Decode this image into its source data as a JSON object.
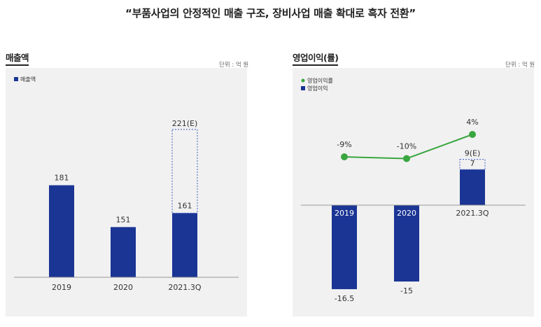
{
  "headline": "“부품사업의 안정적인 매출 구조, 장비사업 매출 확대로 흑자 전환”",
  "colors": {
    "bar": "#1a3594",
    "line": "#3aa640",
    "estimate_border": "#3d5cc4",
    "panel_bg": "#f1f1f1"
  },
  "chart_data": [
    {
      "type": "bar",
      "title": "매출액",
      "unit_label": "단위 : 억 원",
      "legend": [
        "매출액"
      ],
      "categories": [
        "2019",
        "2020",
        "2021.3Q"
      ],
      "values": [
        181,
        151,
        161
      ],
      "value_labels": [
        "181",
        "151",
        "161"
      ],
      "estimate": {
        "category": "2021.3Q",
        "value": 221,
        "label": "221(E)"
      },
      "ylim": [
        115,
        235
      ]
    },
    {
      "type": "bar+line",
      "title": "영업이익(률)",
      "unit_label": "단위 : 억 원",
      "legend": [
        "영업이익률",
        "영업이익"
      ],
      "categories": [
        "2019",
        "2020",
        "2021.3Q"
      ],
      "bars": {
        "name": "영업이익",
        "values": [
          -16.5,
          -15,
          7
        ],
        "value_labels": [
          "-16.5",
          "-15",
          "7"
        ],
        "estimate": {
          "category": "2021.3Q",
          "value": 9,
          "label": "9(E)"
        }
      },
      "line": {
        "name": "영업이익률",
        "values": [
          -9,
          -10,
          4
        ],
        "value_labels": [
          "-9%",
          "-10%",
          "4%"
        ]
      }
    }
  ]
}
